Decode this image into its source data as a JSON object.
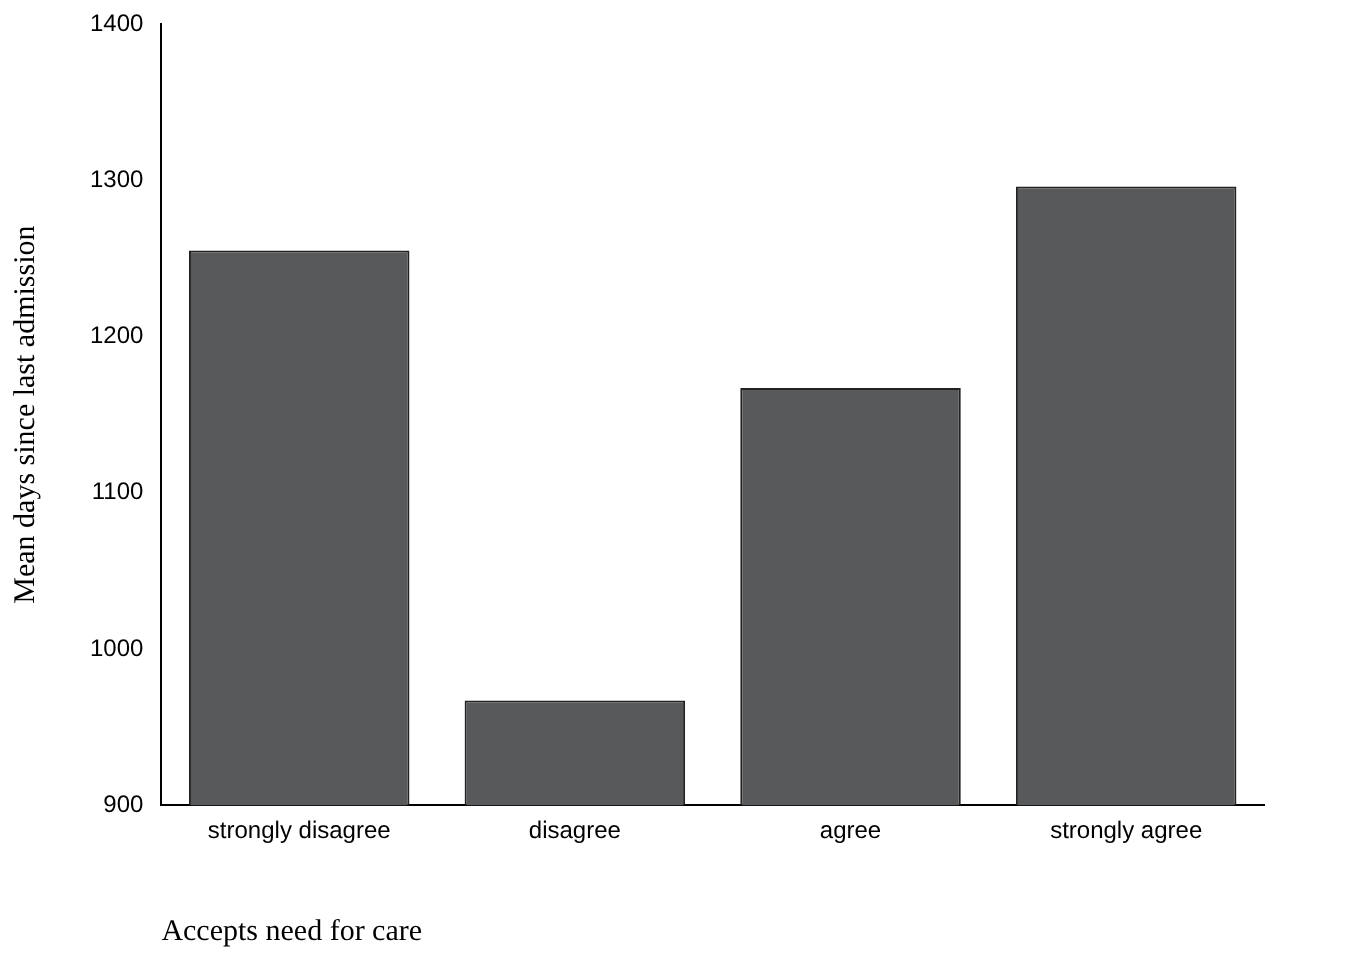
{
  "chart_data": {
    "type": "bar",
    "xlabel": "Accepts need for care",
    "ylabel": "Mean days since last admission",
    "categories": [
      "strongly disagree",
      "disagree",
      "agree",
      "strongly agree"
    ],
    "values": [
      1255,
      967,
      1167,
      1296
    ],
    "color": "#58595b",
    "ylim": [
      900,
      1400
    ],
    "yticks": [
      900,
      1000,
      1100,
      1200,
      1300,
      1400
    ],
    "grid": false,
    "legend": false
  }
}
